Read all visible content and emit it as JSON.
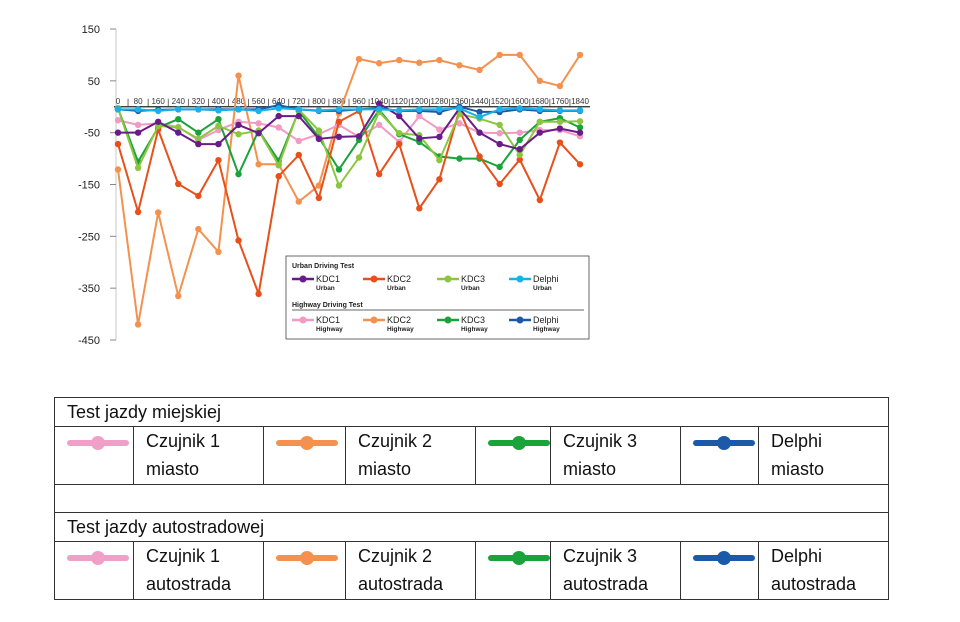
{
  "chart_data": {
    "type": "line",
    "x": [
      0,
      80,
      160,
      240,
      320,
      400,
      480,
      560,
      640,
      720,
      800,
      880,
      960,
      1040,
      1120,
      1200,
      1280,
      1360,
      1440,
      1520,
      1600,
      1680,
      1760,
      1840
    ],
    "ylim": [
      -450,
      150
    ],
    "yticks": [
      150,
      50,
      -50,
      -150,
      -250,
      -350,
      -450
    ],
    "xticks": [
      "0",
      "80",
      "160",
      "240",
      "320",
      "400",
      "480",
      "560",
      "640",
      "720",
      "800",
      "880",
      "960",
      "1040",
      "1120",
      "1200",
      "1280",
      "1360",
      "1440",
      "1520",
      "1600",
      "1680",
      "1760",
      "1840"
    ],
    "legend": {
      "placement": "bottom-right",
      "group_titles": [
        "Urban Driving Test",
        "Highway Driving Test"
      ]
    },
    "series": [
      {
        "name": "KDC1",
        "sub": "Urban",
        "color": "#6a1b8a",
        "values": [
          -50,
          -50,
          -29,
          -50,
          -72,
          -72,
          -35,
          -51,
          -18,
          -18,
          -62,
          -58,
          -57,
          6,
          -18,
          -61,
          -58,
          -3,
          -50,
          -72,
          -82,
          -50,
          -42,
          -50
        ]
      },
      {
        "name": "KDC2",
        "sub": "Urban",
        "color": "#e8501a",
        "values": [
          -72,
          -203,
          -44,
          -149,
          -172,
          -103,
          -258,
          -361,
          -134,
          -93,
          -176,
          -29,
          -8,
          -130,
          -72,
          -196,
          -140,
          -6,
          -96,
          -149,
          -102,
          -180,
          -69,
          -111
        ]
      },
      {
        "name": "KDC3",
        "sub": "Urban",
        "color": "#8cc63f",
        "values": [
          -3,
          -118,
          -37,
          -40,
          -62,
          -37,
          -53,
          -46,
          -113,
          -6,
          -46,
          -152,
          -98,
          -10,
          -51,
          -55,
          -103,
          -14,
          -23,
          -35,
          -93,
          -29,
          -29,
          -28
        ]
      },
      {
        "name": "Delphi",
        "sub": "Urban",
        "color": "#1ab0e8",
        "values": [
          -5,
          -5,
          -8,
          -5,
          -5,
          -7,
          -5,
          -8,
          -3,
          -5,
          -7,
          -5,
          -5,
          -5,
          -7,
          -5,
          -5,
          -3,
          -20,
          -5,
          -3,
          -5,
          -7,
          -7
        ]
      },
      {
        "name": "KDC1",
        "sub": "Highway",
        "color": "#f09ac4",
        "values": [
          -26,
          -35,
          -32,
          -39,
          -64,
          -45,
          -29,
          -32,
          -40,
          -66,
          -53,
          -35,
          -58,
          -35,
          -68,
          -18,
          -44,
          -32,
          -50,
          -51,
          -50,
          -45,
          -45,
          -57
        ]
      },
      {
        "name": "KDC2",
        "sub": "Highway",
        "color": "#f4914e",
        "values": [
          -121,
          -420,
          -204,
          -365,
          -236,
          -280,
          60,
          -111,
          -111,
          -183,
          -152,
          -13,
          92,
          84,
          90,
          85,
          90,
          80,
          71,
          100,
          100,
          50,
          40,
          100
        ]
      },
      {
        "name": "KDC3",
        "sub": "Highway",
        "color": "#1aa33a",
        "values": [
          -3,
          -106,
          -40,
          -24,
          -50,
          -24,
          -130,
          -46,
          -104,
          -8,
          -59,
          -121,
          -64,
          -6,
          -53,
          -68,
          -96,
          -100,
          -100,
          -116,
          -64,
          -29,
          -22,
          -40
        ]
      },
      {
        "name": "Delphi",
        "sub": "Highway",
        "color": "#1a5aa8",
        "values": [
          -5,
          -8,
          -6,
          -5,
          -5,
          -5,
          -5,
          -5,
          3,
          -5,
          -8,
          -8,
          -5,
          -3,
          -8,
          -8,
          -10,
          0,
          -10,
          -10,
          -5,
          -8,
          -8,
          -8
        ]
      }
    ]
  },
  "table": {
    "urban_header": "Test jazdy miejskiej",
    "highway_header": "Test jazdy autostradowej",
    "urban_items": [
      {
        "line1": "Czujnik 1",
        "line2": "miasto",
        "color": "#f0a0c8"
      },
      {
        "line1": "Czujnik 2",
        "line2": "miasto",
        "color": "#f4914e"
      },
      {
        "line1": "Czujnik 3",
        "line2": "miasto",
        "color": "#1aa33a"
      },
      {
        "line1": "Delphi",
        "line2": "miasto",
        "color": "#1a5aa8"
      }
    ],
    "highway_items": [
      {
        "line1": "Czujnik 1",
        "line2": "autostrada",
        "color": "#f0a0c8"
      },
      {
        "line1": "Czujnik 2",
        "line2": "autostrada",
        "color": "#f4914e"
      },
      {
        "line1": "Czujnik 3",
        "line2": "autostrada",
        "color": "#1aa33a"
      },
      {
        "line1": "Delphi",
        "line2": "autostrada",
        "color": "#1a5aa8"
      }
    ]
  }
}
